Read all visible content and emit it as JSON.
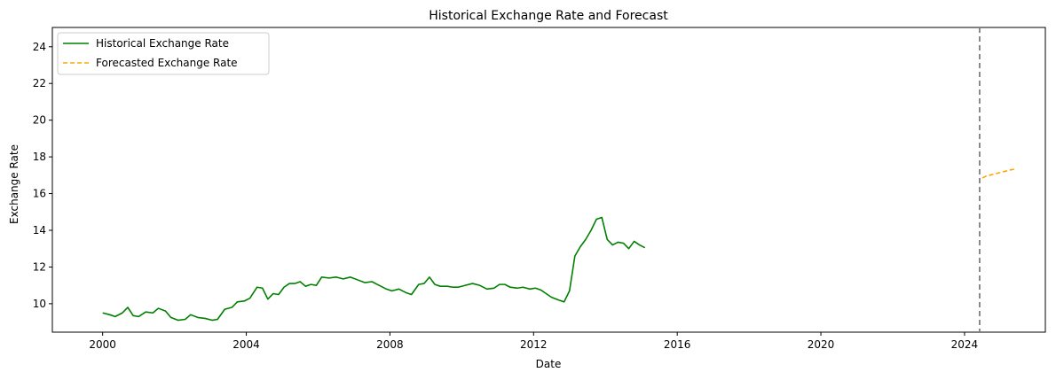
{
  "chart_data": {
    "type": "line",
    "title": "Historical Exchange Rate and Forecast",
    "xlabel": "Date",
    "ylabel": "Exchange Rate",
    "xlim": [
      1998.6,
      2026.25
    ],
    "ylim": [
      8.45,
      25.05
    ],
    "x_ticks": [
      2000,
      2004,
      2008,
      2012,
      2016,
      2020,
      2024
    ],
    "x_tick_labels": [
      "2000",
      "2004",
      "2008",
      "2012",
      "2016",
      "2020",
      "2024"
    ],
    "y_ticks": [
      10,
      12,
      14,
      16,
      18,
      20,
      22,
      24
    ],
    "y_tick_labels": [
      "10",
      "12",
      "14",
      "16",
      "18",
      "20",
      "22",
      "24"
    ],
    "grid": false,
    "legend_position": "top-left",
    "vline": {
      "x": 2024.42,
      "color": "#808080",
      "style": "dashed"
    },
    "series": [
      {
        "name": "Historical Exchange Rate",
        "color": "#008000",
        "style": "solid",
        "points": [
          [
            2000.0,
            9.5
          ],
          [
            2000.2,
            9.4
          ],
          [
            2000.35,
            9.3
          ],
          [
            2000.55,
            9.5
          ],
          [
            2000.7,
            9.8
          ],
          [
            2000.85,
            9.35
          ],
          [
            2001.0,
            9.3
          ],
          [
            2001.2,
            9.55
          ],
          [
            2001.4,
            9.5
          ],
          [
            2001.55,
            9.75
          ],
          [
            2001.75,
            9.6
          ],
          [
            2001.9,
            9.25
          ],
          [
            2002.1,
            9.1
          ],
          [
            2002.3,
            9.15
          ],
          [
            2002.45,
            9.4
          ],
          [
            2002.65,
            9.25
          ],
          [
            2002.85,
            9.2
          ],
          [
            2003.05,
            9.1
          ],
          [
            2003.2,
            9.15
          ],
          [
            2003.4,
            9.7
          ],
          [
            2003.6,
            9.8
          ],
          [
            2003.75,
            10.1
          ],
          [
            2003.95,
            10.15
          ],
          [
            2004.1,
            10.3
          ],
          [
            2004.3,
            10.9
          ],
          [
            2004.45,
            10.85
          ],
          [
            2004.6,
            10.25
          ],
          [
            2004.75,
            10.55
          ],
          [
            2004.9,
            10.5
          ],
          [
            2005.05,
            10.9
          ],
          [
            2005.2,
            11.1
          ],
          [
            2005.35,
            11.1
          ],
          [
            2005.5,
            11.2
          ],
          [
            2005.65,
            10.95
          ],
          [
            2005.8,
            11.05
          ],
          [
            2005.95,
            11.0
          ],
          [
            2006.1,
            11.45
          ],
          [
            2006.3,
            11.4
          ],
          [
            2006.5,
            11.45
          ],
          [
            2006.7,
            11.35
          ],
          [
            2006.9,
            11.45
          ],
          [
            2007.1,
            11.3
          ],
          [
            2007.3,
            11.15
          ],
          [
            2007.5,
            11.2
          ],
          [
            2007.7,
            11.0
          ],
          [
            2007.9,
            10.8
          ],
          [
            2008.05,
            10.7
          ],
          [
            2008.25,
            10.8
          ],
          [
            2008.45,
            10.6
          ],
          [
            2008.6,
            10.5
          ],
          [
            2008.8,
            11.05
          ],
          [
            2008.95,
            11.1
          ],
          [
            2009.1,
            11.45
          ],
          [
            2009.25,
            11.05
          ],
          [
            2009.4,
            10.95
          ],
          [
            2009.6,
            10.95
          ],
          [
            2009.75,
            10.9
          ],
          [
            2009.9,
            10.9
          ],
          [
            2010.1,
            11.0
          ],
          [
            2010.3,
            11.1
          ],
          [
            2010.5,
            11.0
          ],
          [
            2010.7,
            10.8
          ],
          [
            2010.9,
            10.85
          ],
          [
            2011.05,
            11.05
          ],
          [
            2011.2,
            11.05
          ],
          [
            2011.35,
            10.9
          ],
          [
            2011.55,
            10.85
          ],
          [
            2011.7,
            10.9
          ],
          [
            2011.9,
            10.8
          ],
          [
            2012.05,
            10.85
          ],
          [
            2012.2,
            10.75
          ],
          [
            2012.35,
            10.55
          ],
          [
            2012.5,
            10.35
          ],
          [
            2012.7,
            10.2
          ],
          [
            2012.85,
            10.1
          ],
          [
            2013.0,
            10.7
          ],
          [
            2013.15,
            12.6
          ],
          [
            2013.3,
            13.1
          ],
          [
            2013.45,
            13.5
          ],
          [
            2013.6,
            14.0
          ],
          [
            2013.75,
            14.6
          ],
          [
            2013.9,
            14.7
          ],
          [
            2014.05,
            13.5
          ],
          [
            2014.2,
            13.2
          ],
          [
            2014.35,
            13.35
          ],
          [
            2014.5,
            13.3
          ],
          [
            2014.65,
            13.0
          ],
          [
            2014.8,
            13.4
          ],
          [
            2014.95,
            13.2
          ],
          [
            2015.1,
            13.05
          ]
        ]
      },
      {
        "name": "Forecasted Exchange Rate",
        "color": "#ffa500",
        "style": "dashed",
        "points": [
          [
            2024.5,
            16.85
          ],
          [
            2024.6,
            16.95
          ],
          [
            2024.7,
            17.0
          ],
          [
            2024.8,
            17.05
          ],
          [
            2024.9,
            17.1
          ],
          [
            2025.0,
            17.15
          ],
          [
            2025.1,
            17.2
          ],
          [
            2025.2,
            17.25
          ],
          [
            2025.3,
            17.3
          ],
          [
            2025.4,
            17.33
          ]
        ]
      }
    ]
  }
}
